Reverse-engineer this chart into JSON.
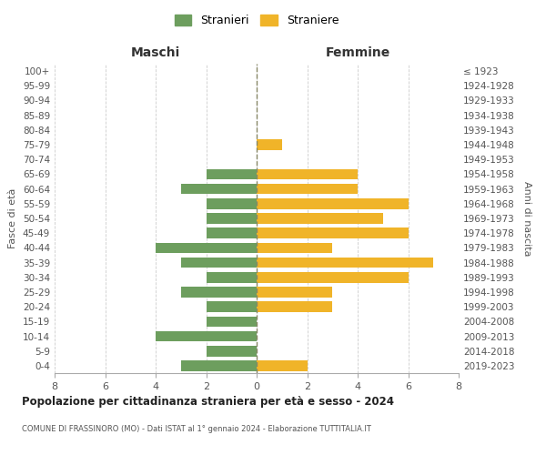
{
  "age_groups": [
    "0-4",
    "5-9",
    "10-14",
    "15-19",
    "20-24",
    "25-29",
    "30-34",
    "35-39",
    "40-44",
    "45-49",
    "50-54",
    "55-59",
    "60-64",
    "65-69",
    "70-74",
    "75-79",
    "80-84",
    "85-89",
    "90-94",
    "95-99",
    "100+"
  ],
  "birth_years": [
    "2019-2023",
    "2014-2018",
    "2009-2013",
    "2004-2008",
    "1999-2003",
    "1994-1998",
    "1989-1993",
    "1984-1988",
    "1979-1983",
    "1974-1978",
    "1969-1973",
    "1964-1968",
    "1959-1963",
    "1954-1958",
    "1949-1953",
    "1944-1948",
    "1939-1943",
    "1934-1938",
    "1929-1933",
    "1924-1928",
    "≤ 1923"
  ],
  "maschi": [
    3,
    2,
    4,
    2,
    2,
    3,
    2,
    3,
    4,
    2,
    2,
    2,
    3,
    2,
    0,
    0,
    0,
    0,
    0,
    0,
    0
  ],
  "femmine": [
    2,
    0,
    0,
    0,
    3,
    3,
    6,
    7,
    3,
    6,
    5,
    6,
    4,
    4,
    0,
    1,
    0,
    0,
    0,
    0,
    0
  ],
  "color_maschi": "#6d9e5e",
  "color_femmine": "#f0b429",
  "title": "Popolazione per cittadinanza straniera per età e sesso - 2024",
  "subtitle": "COMUNE DI FRASSINORO (MO) - Dati ISTAT al 1° gennaio 2024 - Elaborazione TUTTITALIA.IT",
  "xlabel_left": "Maschi",
  "xlabel_right": "Femmine",
  "ylabel_left": "Fasce di età",
  "ylabel_right": "Anni di nascita",
  "legend_maschi": "Stranieri",
  "legend_femmine": "Straniere",
  "xlim": 8,
  "background_color": "#ffffff",
  "grid_color": "#cccccc"
}
